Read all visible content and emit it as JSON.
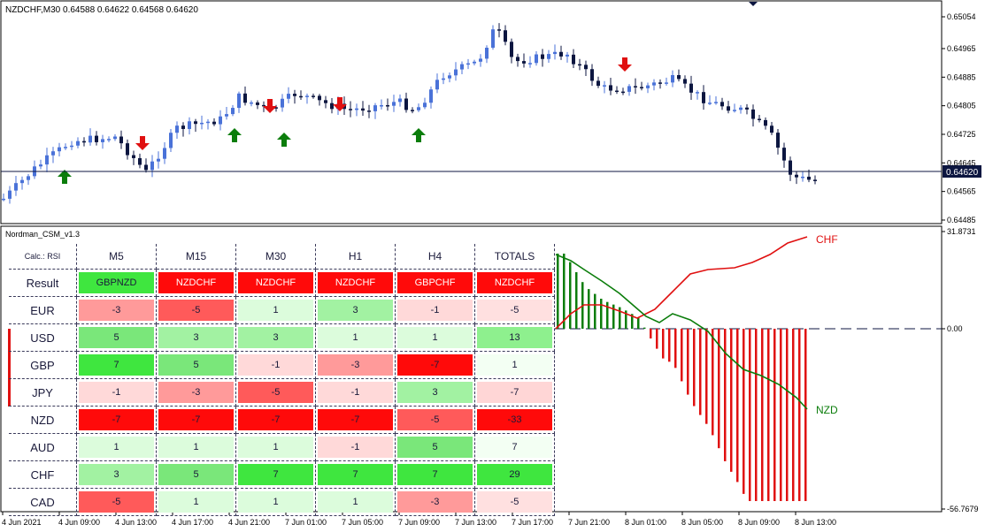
{
  "chart": {
    "symbol_info": "NZDCHF,M30  0.64588 0.64622 0.64568 0.64620",
    "current_price_label": "0.64620",
    "price_axis_labels": [
      "0.65054",
      "0.64965",
      "0.64885",
      "0.64805",
      "0.64725",
      "0.64645",
      "0.64565",
      "0.64485"
    ],
    "time_axis_labels": [
      "4 Jun 2021",
      "4 Jun 09:00",
      "4 Jun 13:00",
      "4 Jun 17:00",
      "4 Jun 21:00",
      "7 Jun 01:00",
      "7 Jun 05:00",
      "7 Jun 09:00",
      "7 Jun 13:00",
      "7 Jun 17:00",
      "7 Jun 21:00",
      "8 Jun 01:00",
      "8 Jun 05:00",
      "8 Jun 09:00",
      "8 Jun 13:00"
    ],
    "colors": {
      "bull": "#4a72d8",
      "bear": "#0c1640",
      "buy_arrow": "#0b7d0b",
      "sell_arrow": "#e01010"
    }
  },
  "indicator": {
    "title": "Nordman_CSM_v1.3",
    "axis_labels": [
      "31.8731",
      "0.00",
      "-56.7679"
    ],
    "line_labels": {
      "top": "CHF",
      "bottom": "NZD"
    },
    "colors": {
      "chf": "#e01010",
      "nzd": "#0b7d0b",
      "pos_bar": "#0b7d0b",
      "neg_bar": "#e01010"
    }
  },
  "table": {
    "calc_label": "Calc.: RSI",
    "columns": [
      "M5",
      "M15",
      "M30",
      "H1",
      "H4",
      "TOTALS"
    ],
    "result": {
      "label": "Result",
      "values": [
        "GBPNZD",
        "NZDCHF",
        "NZDCHF",
        "NZDCHF",
        "GBPCHF",
        "NZDCHF"
      ]
    },
    "rows": [
      {
        "label": "EUR",
        "values": [
          "-3",
          "-5",
          "1",
          "3",
          "-1",
          "-5"
        ]
      },
      {
        "label": "USD",
        "values": [
          "5",
          "3",
          "3",
          "1",
          "1",
          "13"
        ]
      },
      {
        "label": "GBP",
        "values": [
          "7",
          "5",
          "-1",
          "-3",
          "-7",
          "1"
        ]
      },
      {
        "label": "JPY",
        "values": [
          "-1",
          "-3",
          "-5",
          "-1",
          "3",
          "-7"
        ]
      },
      {
        "label": "NZD",
        "values": [
          "-7",
          "-7",
          "-7",
          "-7",
          "-5",
          "-33"
        ]
      },
      {
        "label": "AUD",
        "values": [
          "1",
          "1",
          "1",
          "-1",
          "5",
          "7"
        ]
      },
      {
        "label": "CHF",
        "values": [
          "3",
          "5",
          "7",
          "7",
          "7",
          "29"
        ]
      },
      {
        "label": "CAD",
        "values": [
          "-5",
          "1",
          "1",
          "1",
          "-3",
          "-5"
        ]
      }
    ]
  }
}
